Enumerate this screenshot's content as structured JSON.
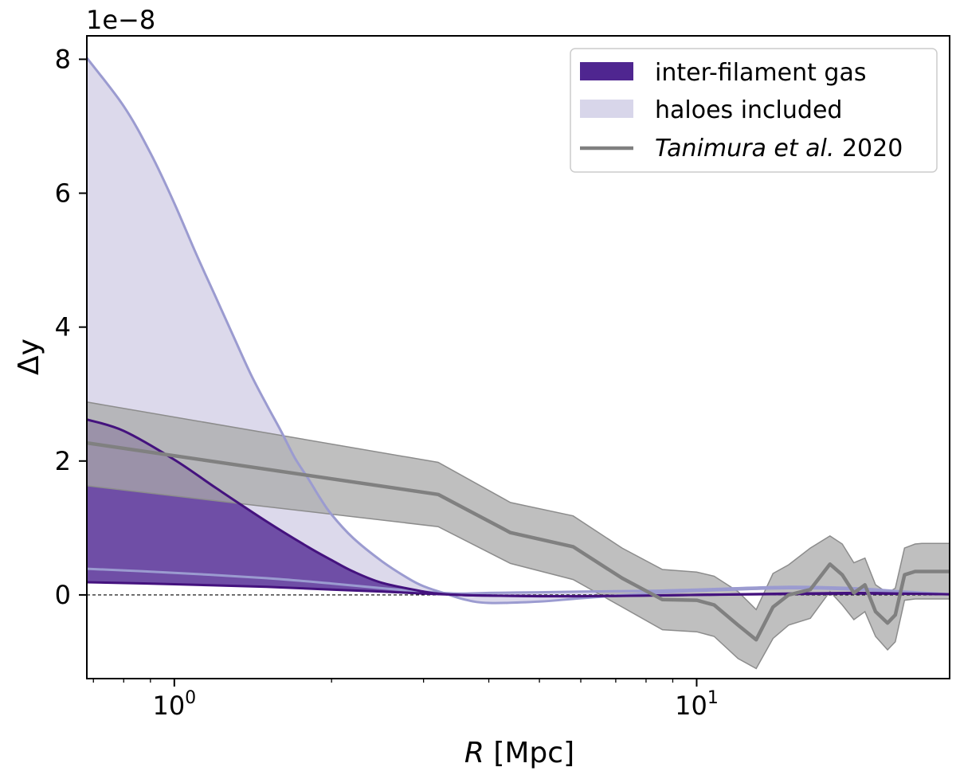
{
  "chart_data": {
    "type": "line",
    "xscale": "log",
    "xlim": [
      0.68,
      30.5
    ],
    "ylim": [
      -1.25e-08,
      8.35e-08
    ],
    "xlabel_italic": "R",
    "xlabel_unit": "[Mpc]",
    "ylabel": "Δy",
    "offset_label": "1e−8",
    "x_ticks": [
      {
        "value": 1,
        "base": "10",
        "exp": "0"
      },
      {
        "value": 10,
        "base": "10",
        "exp": "1"
      }
    ],
    "y_ticks": [
      {
        "value": 0,
        "label": "0"
      },
      {
        "value": 2e-08,
        "label": "2"
      },
      {
        "value": 4e-08,
        "label": "4"
      },
      {
        "value": 6e-08,
        "label": "6"
      },
      {
        "value": 8e-08,
        "label": "8"
      }
    ],
    "legend": {
      "position": "top-right",
      "entries": [
        {
          "id": "inter",
          "label": "inter-filament gas"
        },
        {
          "id": "haloes",
          "label": "haloes included"
        },
        {
          "id": "tanimura",
          "label_italic": "Tanimura et al.",
          "label_rest": " 2020"
        }
      ]
    },
    "colors": {
      "inter_fill": "#6f4ea6",
      "inter_line": "#44127e",
      "inter_patch": "#4f2690",
      "haloes_fill": "#dcd9eb",
      "haloes_line": "#9b9bd0",
      "haloes_patch": "#d8d6ea",
      "tanimura_band": "#a9a9a9",
      "tanimura_line": "#808080"
    },
    "series": [
      {
        "name": "inter-filament gas upper",
        "x": [
          0.68,
          0.8,
          1.0,
          1.2,
          1.5,
          1.8,
          2.0,
          2.2,
          2.5,
          3.0,
          3.2,
          3.5,
          4.0,
          5.0,
          6.0,
          8.0,
          10.0,
          15.0,
          20.0,
          25.0,
          30.5
        ],
        "y": [
          2.62e-08,
          2.45e-08,
          2.02e-08,
          1.6e-08,
          1.1e-08,
          7.2e-09,
          5.2e-09,
          3.5e-09,
          1.8e-09,
          5e-10,
          2e-10,
          0.0,
          -1e-10,
          -2e-10,
          -2e-10,
          -1e-10,
          0.0,
          2e-10,
          3e-10,
          2e-10,
          1e-10
        ]
      },
      {
        "name": "inter-filament gas lower",
        "x": [
          0.68,
          1.0,
          1.5,
          2.0,
          2.5,
          3.0,
          3.5,
          4.0,
          6.0,
          10.0,
          20.0,
          30.5
        ],
        "y": [
          1.9e-09,
          1.6e-09,
          1.2e-09,
          8e-10,
          5e-10,
          2e-10,
          0.0,
          -1e-10,
          -2e-10,
          0.0,
          2e-10,
          1e-10
        ]
      },
      {
        "name": "haloes included upper",
        "x": [
          0.68,
          0.8,
          0.9,
          1.0,
          1.1,
          1.2,
          1.3,
          1.4,
          1.5,
          1.6,
          1.7,
          1.8,
          1.9,
          2.0,
          2.2,
          2.5,
          2.8,
          3.0,
          3.3,
          3.6,
          4.0,
          5.0,
          6.0,
          8.0,
          10.0,
          15.0,
          20.0,
          25.0,
          30.5
        ],
        "y": [
          8.02e-08,
          7.3e-08,
          6.6e-08,
          5.85e-08,
          5.1e-08,
          4.45e-08,
          3.85e-08,
          3.3e-08,
          2.85e-08,
          2.45e-08,
          2.05e-08,
          1.75e-08,
          1.45e-08,
          1.2e-08,
          8.5e-09,
          5e-09,
          2.5e-09,
          1.3e-09,
          2e-10,
          -7e-10,
          -1.2e-09,
          -1e-09,
          -5e-10,
          2e-10,
          6e-10,
          1e-09,
          8e-10,
          4e-10,
          1e-10
        ]
      },
      {
        "name": "haloes included lower",
        "x": [
          0.68,
          1.0,
          1.5,
          2.0,
          2.5,
          3.0,
          3.5,
          4.0,
          5.0,
          6.0,
          8.0,
          10.0,
          15.0,
          20.0,
          25.0,
          30.5
        ],
        "y": [
          3.9e-09,
          3.3e-09,
          2.5e-09,
          1.7e-09,
          1e-09,
          5e-10,
          2e-10,
          3e-10,
          4e-10,
          5e-10,
          6e-10,
          8e-10,
          1.2e-09,
          1e-09,
          5e-10,
          1e-10
        ]
      },
      {
        "name": "Tanimura et al. 2020",
        "x": [
          0.68,
          3.2,
          4.4,
          5.8,
          7.2,
          8.6,
          10.0,
          10.8,
          12.0,
          13.0,
          14.0,
          15.0,
          16.5,
          18.0,
          19.0,
          20.0,
          21.0,
          22.0,
          23.2,
          24.0,
          25.0,
          26.2,
          27.0,
          29.0,
          30.5
        ],
        "y": [
          2.27e-08,
          1.5e-08,
          9.3e-09,
          7.2e-09,
          2.5e-09,
          -7e-10,
          -8e-10,
          -1.5e-09,
          -4.5e-09,
          -6.7e-09,
          -1.8e-09,
          0.0,
          8e-10,
          4.6e-09,
          3e-09,
          3e-10,
          1.5e-09,
          -2.5e-09,
          -4.2e-09,
          -3e-09,
          3e-09,
          3.5e-09,
          3.5e-09,
          3.5e-09,
          3.5e-09
        ],
        "err_upper": [
          2.88e-08,
          1.98e-08,
          1.38e-08,
          1.18e-08,
          7e-09,
          3.8e-09,
          3.4e-09,
          2.8e-09,
          5e-10,
          -2.2e-09,
          3.2e-09,
          4.5e-09,
          7e-09,
          8.8e-09,
          7.6e-09,
          4.8e-09,
          5.5e-09,
          1.5e-09,
          3e-10,
          1e-09,
          7e-09,
          7.6e-09,
          7.7e-09,
          7.7e-09,
          7.7e-09
        ],
        "err_lower": [
          1.63e-08,
          1.02e-08,
          4.7e-09,
          2.3e-09,
          -1.8e-09,
          -5.2e-09,
          -5.5e-09,
          -6.2e-09,
          -9.5e-09,
          -1.1e-08,
          -6.5e-09,
          -4.5e-09,
          -3.5e-09,
          5e-10,
          -1.5e-09,
          -3.7e-09,
          -2.5e-09,
          -6.2e-09,
          -8.2e-09,
          -7e-09,
          -8e-10,
          -6e-10,
          -6e-10,
          -6e-10,
          -6e-10
        ]
      }
    ]
  }
}
